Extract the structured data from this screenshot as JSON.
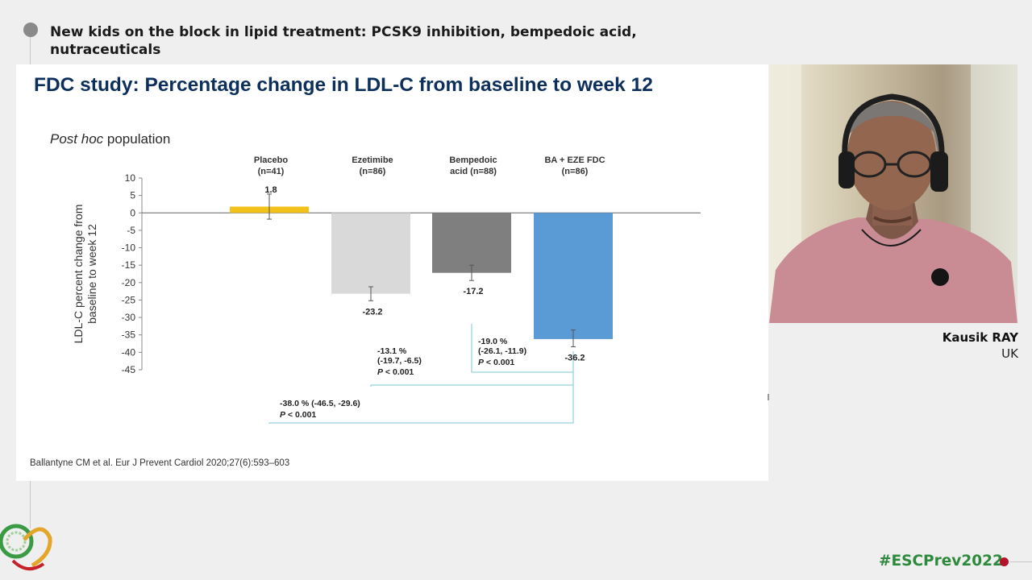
{
  "session": {
    "title": "New kids on the block in lipid treatment: PCSK9 inhibition, bempedoic acid, nutraceuticals"
  },
  "slide": {
    "title": "FDC study: Percentage change in LDL-C from baseline to week 12",
    "subtitle_italic": "Post hoc",
    "subtitle_rest": " population",
    "citation": "Ballantyne CM et al. Eur J Prevent Cardiol 2020;27(6):593–603"
  },
  "chart_data": {
    "type": "bar",
    "ylabel": "LDL-C percent change from baseline to week 12",
    "ylim": [
      -45,
      10
    ],
    "yticks": [
      10,
      5,
      0,
      -5,
      -10,
      -15,
      -20,
      -25,
      -30,
      -35,
      -40,
      -45
    ],
    "categories": [
      {
        "line1": "Placebo",
        "line2": "(n=41)"
      },
      {
        "line1": "Ezetimibe",
        "line2": "(n=86)"
      },
      {
        "line1": "Bempedoic",
        "line2": "acid (n=88)"
      },
      {
        "line1": "BA + EZE FDC",
        "line2": "(n=86)"
      }
    ],
    "values": [
      1.8,
      -23.2,
      -17.2,
      -36.2
    ],
    "value_labels": [
      "1.8",
      "-23.2",
      "-17.2",
      "-36.2"
    ],
    "error_bars": [
      {
        "low": -1.8,
        "high": 5.4
      },
      {
        "low": -25.2,
        "high": -21.2
      },
      {
        "low": -19.4,
        "high": -15.0
      },
      {
        "low": -38.4,
        "high": -33.6
      }
    ],
    "colors": [
      "#f2c21b",
      "#d9d9d9",
      "#7f7f7f",
      "#5b9bd5"
    ],
    "comparisons": [
      {
        "from": 1,
        "to": 3,
        "line1": "-13.1 %",
        "line2": "(-19.7, -6.5)",
        "p_label": "P",
        "p_value": " < 0.001"
      },
      {
        "from": 2,
        "to": 3,
        "line1": "-19.0 %",
        "line2": "(-26.1, -11.9)",
        "p_label": "P",
        "p_value": " < 0.001"
      },
      {
        "from": 0,
        "to": 3,
        "line1": "-38.0 % (-46.5, -29.6)",
        "line2": "",
        "p_label": "P",
        "p_value": " < 0.001"
      }
    ]
  },
  "speaker": {
    "name": "Kausik RAY",
    "country": "UK"
  },
  "footer": {
    "hashtag": "#ESCPrev2022"
  },
  "colors": {
    "title_blue": "#0c2f5c",
    "hashtag_green": "#2d8a3c",
    "accent_red": "#b3122b",
    "bracket_teal": "#7cc8d4"
  }
}
